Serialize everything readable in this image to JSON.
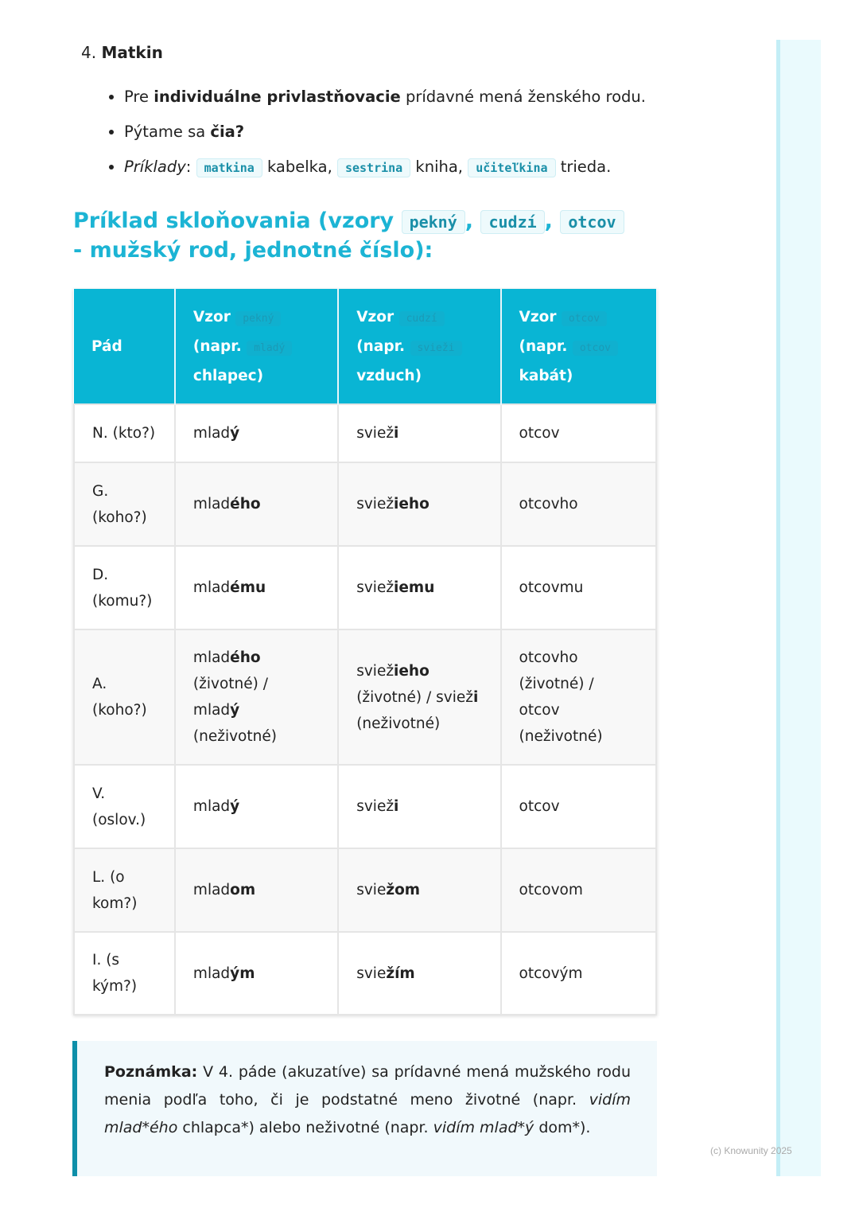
{
  "section": {
    "number": "4.",
    "title": "Matkin"
  },
  "bullets": {
    "b1": {
      "pre": "Pre ",
      "bold": "individuálne privlastňovacie",
      "post": " prídavné mená ženského rodu."
    },
    "b2": {
      "pre": "Pýtame sa ",
      "bold": "čia?"
    },
    "b3": {
      "label": "Príklady",
      "colon": ": ",
      "ex1": "matkina",
      "w1": " kabelka, ",
      "ex2": "sestrina",
      "w2": " kniha, ",
      "ex3": "učiteľkina",
      "w3": " trieda."
    }
  },
  "heading": {
    "pre": "Príklad skloňovania (vzory ",
    "c1": "pekný",
    "s1": ", ",
    "c2": "cudzí",
    "s2": ", ",
    "c3": "otcov",
    "post": " - mužský rod, jednotné číslo):"
  },
  "table": {
    "headers": [
      {
        "text": "Pád"
      },
      {
        "a": "Vzor ",
        "c1": "pekný",
        "b": " (napr. ",
        "c2": "mladý",
        "c": " chlapec)"
      },
      {
        "a": "Vzor ",
        "c1": "cudzí",
        "b": " (napr. ",
        "c2": "svieži",
        "c": " vzduch)"
      },
      {
        "a": "Vzor ",
        "c1": "otcov",
        "b": " (napr. ",
        "c2": "otcov",
        "c": " kabát)"
      }
    ],
    "rows": [
      [
        [
          [
            "N. (kto?)",
            0
          ]
        ],
        [
          [
            "mlad",
            0
          ],
          [
            "ý",
            1
          ]
        ],
        [
          [
            "sviež",
            0
          ],
          [
            "i",
            1
          ]
        ],
        [
          [
            "otcov",
            0
          ]
        ]
      ],
      [
        [
          [
            "G. (koho?)",
            0
          ]
        ],
        [
          [
            "mlad",
            0
          ],
          [
            "ého",
            1
          ]
        ],
        [
          [
            "sviež",
            0
          ],
          [
            "ieho",
            1
          ]
        ],
        [
          [
            "otcovho",
            0
          ]
        ]
      ],
      [
        [
          [
            "D. (komu?)",
            0
          ]
        ],
        [
          [
            "mlad",
            0
          ],
          [
            "ému",
            1
          ]
        ],
        [
          [
            "sviež",
            0
          ],
          [
            "iemu",
            1
          ]
        ],
        [
          [
            "otcovmu",
            0
          ]
        ]
      ],
      [
        [
          [
            "A. (koho?)",
            0
          ]
        ],
        [
          [
            "mlad",
            0
          ],
          [
            "ého",
            1
          ],
          [
            " (životné) / mlad",
            0
          ],
          [
            "ý",
            1
          ],
          [
            " (neživotné)",
            0
          ]
        ],
        [
          [
            "sviež",
            0
          ],
          [
            "ieho",
            1
          ],
          [
            " (životné) / sviež",
            0
          ],
          [
            "i",
            1
          ],
          [
            " (neživotné)",
            0
          ]
        ],
        [
          [
            "otcovho (životné) / otcov (neživotné)",
            0
          ]
        ]
      ],
      [
        [
          [
            "V. (oslov.)",
            0
          ]
        ],
        [
          [
            "mlad",
            0
          ],
          [
            "ý",
            1
          ]
        ],
        [
          [
            "sviež",
            0
          ],
          [
            "i",
            1
          ]
        ],
        [
          [
            "otcov",
            0
          ]
        ]
      ],
      [
        [
          [
            "L. (o kom?)",
            0
          ]
        ],
        [
          [
            "mlad",
            0
          ],
          [
            "om",
            1
          ]
        ],
        [
          [
            "svie",
            0
          ],
          [
            "žom",
            1
          ]
        ],
        [
          [
            "otcovom",
            0
          ]
        ]
      ],
      [
        [
          [
            "I. (s kým?)",
            0
          ]
        ],
        [
          [
            "mlad",
            0
          ],
          [
            "ým",
            1
          ]
        ],
        [
          [
            "svie",
            0
          ],
          [
            "žím",
            1
          ]
        ],
        [
          [
            "otcovým",
            0
          ]
        ]
      ]
    ]
  },
  "note": {
    "label": "Poznámka:",
    "t1": " V 4. páde (akuzatíve) sa prídavné mená mužského rodu menia podľa toho, či je podstatné meno životné (napr. ",
    "i1": "vidím mlad*ého",
    "t2": " chlapca*) alebo neživotné (napr. ",
    "i2": "vidím mlad*ý",
    "t3": " dom*)."
  },
  "footer": {
    "copyright": "(c) Knowunity 2025"
  },
  "colors": {
    "accent": "#09b5d4",
    "heading": "#1cb4d4",
    "note_border": "#0e8fa9"
  }
}
